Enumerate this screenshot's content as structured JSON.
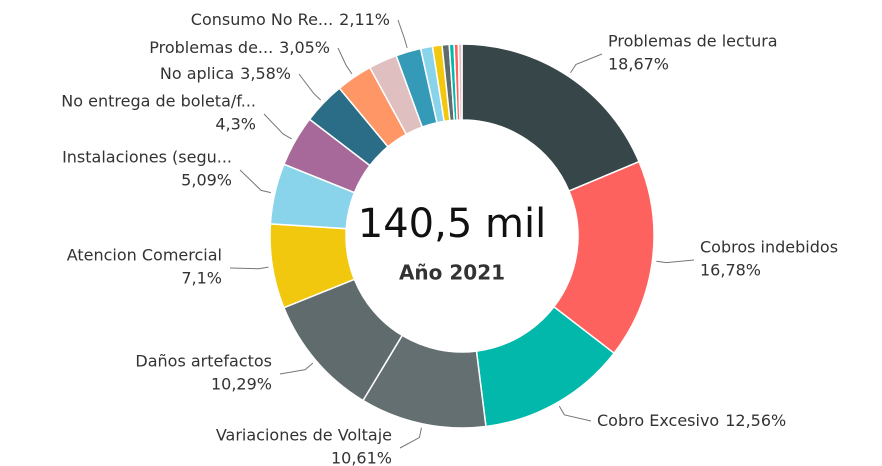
{
  "chart_data": {
    "type": "donut",
    "center_value": "140,5 mil",
    "center_label": "Año 2021",
    "categories": [
      "Problemas de lectura",
      "Cobros indebidos",
      "Cobro Excesivo",
      "Variaciones de Voltaje",
      "Daños artefactos",
      "Atencion Comercial",
      "Instalaciones (segu...",
      "No entrega de boleta/f...",
      "No aplica",
      "Problemas de...",
      null,
      "Consumo No Re...",
      null,
      null,
      null,
      null,
      null,
      null
    ],
    "values": [
      18.67,
      16.78,
      12.56,
      10.61,
      10.29,
      7.1,
      5.09,
      4.3,
      3.58,
      3.05,
      2.4,
      2.11,
      1.0,
      0.8,
      0.6,
      0.4,
      0.36,
      0.3
    ],
    "value_labels": [
      "18,67%",
      "16,78%",
      "12,56%",
      "10,61%",
      "10,29%",
      "7,1%",
      "5,09%",
      "4,3%",
      "3,58%",
      "3,05%",
      null,
      "2,11%",
      null,
      null,
      null,
      null,
      null,
      null
    ],
    "colors": [
      "#374649",
      "#FD625E",
      "#01B8AA",
      "#646F71",
      "#5F6B6D",
      "#F2C80F",
      "#8AD4EB",
      "#A66999",
      "#2B6D86",
      "#FE9666",
      "#DFBFBF",
      "#3599B8",
      "#8AD4EB",
      "#F2C80F",
      "#5F6B6D",
      "#01B8AA",
      "#FD625E",
      "#DFBFBF"
    ]
  }
}
